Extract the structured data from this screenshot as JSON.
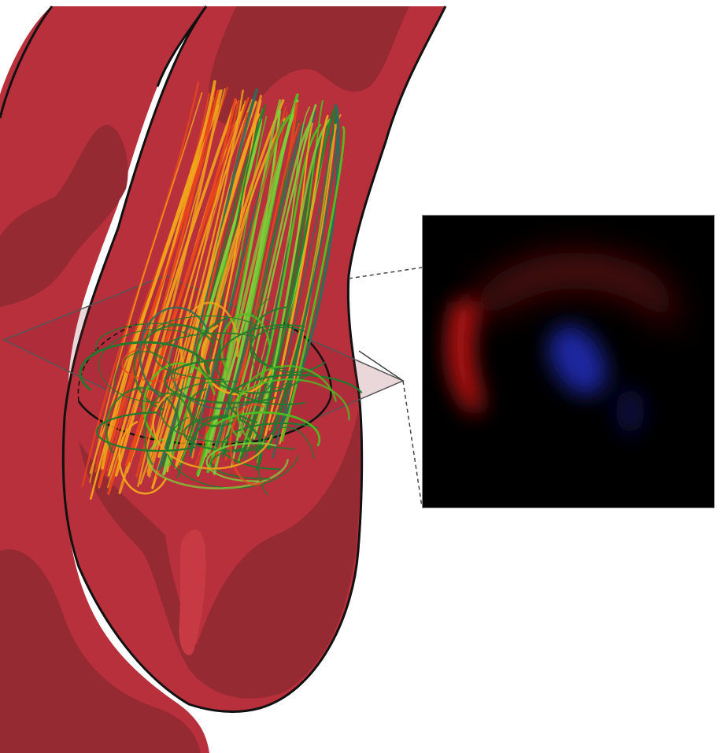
{
  "figure": {
    "description_visible_text": [],
    "colors": {
      "vessel_wall": "#b8303c",
      "vessel_shadow": "#962a33",
      "outline": "#111111",
      "streamline_slow": "#1f7a2e",
      "streamline_mid": "#4cc21f",
      "streamline_fast": "#f0a41c",
      "streamline_fastest": "#e8461c",
      "inset_background": "#000000",
      "inset_positive": "#c41818",
      "inset_negative": "#1c28a0"
    },
    "icons": [
      "vessel-geometry",
      "streamlines",
      "cross-section-plane",
      "velocity-map-inset"
    ]
  }
}
